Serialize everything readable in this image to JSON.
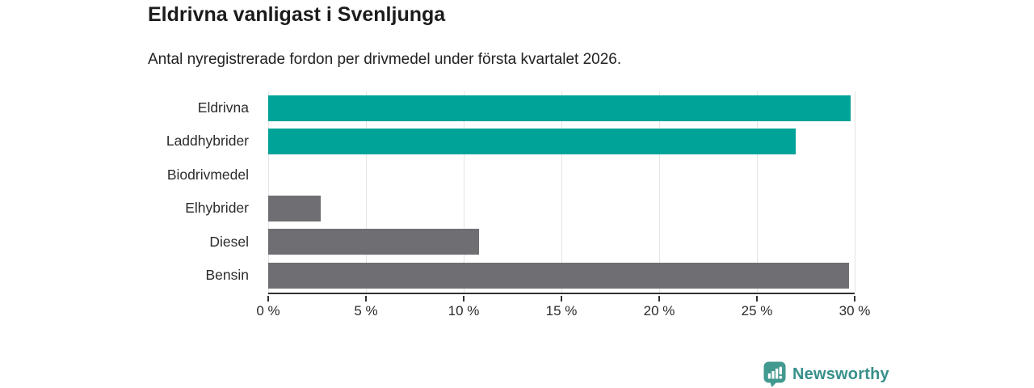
{
  "chart_data": {
    "type": "bar",
    "orientation": "horizontal",
    "title": "Eldrivna vanligast i Svenljunga",
    "subtitle": "Antal nyregistrerade fordon per drivmedel under första kvartalet 2026.",
    "categories": [
      "Eldrivna",
      "Laddhybrider",
      "Biodrivmedel",
      "Elhybrider",
      "Diesel",
      "Bensin"
    ],
    "values": [
      29.8,
      27.0,
      0,
      2.7,
      10.8,
      29.7
    ],
    "unit": "%",
    "xlim": [
      0,
      30
    ],
    "ticks": [
      0,
      5,
      10,
      15,
      20,
      25,
      30
    ],
    "tick_labels": [
      "0 %",
      "5 %",
      "10 %",
      "15 %",
      "20 %",
      "25 %",
      "30 %"
    ],
    "bar_colors": [
      "#00a398",
      "#00a398",
      "#00a398",
      "#6e6e73",
      "#6e6e73",
      "#6e6e73"
    ],
    "grid": "vertical-gridlines",
    "legend": "none"
  },
  "branding": {
    "label": "Newsworthy",
    "icon": "newsworthy-speech-bubble-bar-chart-icon",
    "text_color": "#38908a",
    "icon_color": "#42998f"
  },
  "colors": {
    "electric_teal": "#00a398",
    "fossil_gray": "#6e6e73",
    "gridline": "#e4e4e4",
    "axis": "#333333",
    "title_text": "#1c1c1c",
    "body_text": "#2b2b2b"
  }
}
